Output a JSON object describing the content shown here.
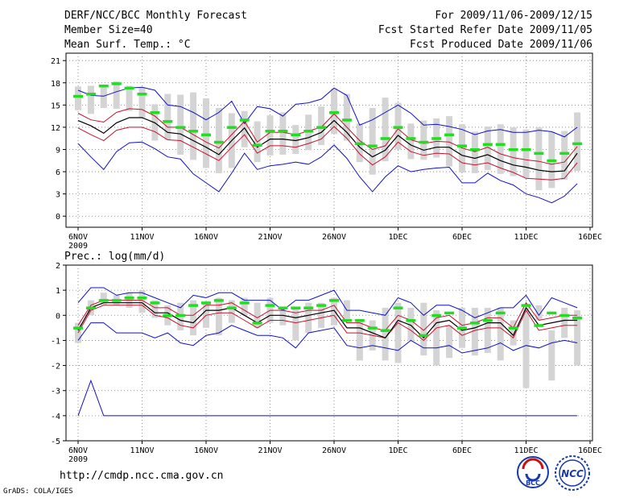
{
  "header": {
    "left_line1": "DERF/NCC/BCC Monthly Forecast",
    "left_line2": "Member Size=40",
    "left_line3": "Mean Surf. Temp.: °C",
    "right_line1": "For 2009/11/06-2009/12/15",
    "right_line2": "Fcst Started Refer Date 2009/11/05",
    "right_line3": "Fcst Produced Date 2009/11/06"
  },
  "footer": {
    "url": "http://cmdp.ncc.cma.gov.cn",
    "credit": "GrADS: COLA/IGES",
    "logo_bcc": "BCC",
    "logo_ncc": "NCC"
  },
  "colors": {
    "box": "#d4d4d4",
    "median": "#22dd22",
    "mean": "#000000",
    "inner": "#c8102e",
    "outer": "#1010cc",
    "grid": "#777777"
  },
  "chart_data": [
    {
      "type": "line",
      "title": "Mean Surf. Temp.: °C",
      "ylim": [
        -1.5,
        22
      ],
      "yticks": [
        0,
        3,
        6,
        9,
        12,
        15,
        18,
        21
      ],
      "xticks": [
        {
          "day": 0,
          "label": "6NOV",
          "sub": "2009"
        },
        {
          "day": 5,
          "label": "11NOV",
          "sub": ""
        },
        {
          "day": 10,
          "label": "16NOV",
          "sub": ""
        },
        {
          "day": 15,
          "label": "21NOV",
          "sub": ""
        },
        {
          "day": 20,
          "label": "26NOV",
          "sub": ""
        },
        {
          "day": 25,
          "label": "1DEC",
          "sub": ""
        },
        {
          "day": 30,
          "label": "6DEC",
          "sub": ""
        },
        {
          "day": 35,
          "label": "11DEC",
          "sub": ""
        },
        {
          "day": 40,
          "label": "16DEC",
          "sub": ""
        }
      ],
      "days": [
        0,
        1,
        2,
        3,
        4,
        5,
        6,
        7,
        8,
        9,
        10,
        11,
        12,
        13,
        14,
        15,
        16,
        17,
        18,
        19,
        20,
        21,
        22,
        23,
        24,
        25,
        26,
        27,
        28,
        29,
        30,
        31,
        32,
        33,
        34,
        35,
        36,
        37,
        38,
        39
      ],
      "box_low": [
        14.3,
        13.8,
        14.6,
        14.5,
        14.2,
        13.3,
        10.2,
        10.3,
        8.3,
        7.6,
        6.5,
        5.8,
        6.5,
        9.3,
        7.3,
        8.2,
        8.3,
        8.4,
        8.9,
        9.6,
        11.1,
        10.2,
        7.3,
        5.6,
        7.4,
        9.0,
        7.7,
        7.6,
        7.9,
        6.7,
        5.9,
        5.8,
        6.2,
        5.7,
        5.4,
        5.2,
        3.5,
        3.8,
        4.9,
        6.1
      ],
      "box_high": [
        17.5,
        17.6,
        17.7,
        18.2,
        17.6,
        17.4,
        15.1,
        16.5,
        16.4,
        16.7,
        15.9,
        14.6,
        13.9,
        14.2,
        12.8,
        13.6,
        14.0,
        12.3,
        13.7,
        14.8,
        17.2,
        16.5,
        12.5,
        14.6,
        16.0,
        15.3,
        12.5,
        12.9,
        13.2,
        13.5,
        12.4,
        11.4,
        12.1,
        12.4,
        12.0,
        11.7,
        12.0,
        11.4,
        11.5,
        14.0
      ],
      "median": [
        16.2,
        16.5,
        17.6,
        17.9,
        17.3,
        16.5,
        14.0,
        12.8,
        12.0,
        11.5,
        11.0,
        10.0,
        12.0,
        13.0,
        9.6,
        11.5,
        11.5,
        11.0,
        11.5,
        12.0,
        14.0,
        13.0,
        9.8,
        9.5,
        10.5,
        12.0,
        10.5,
        10.0,
        10.5,
        11.0,
        9.5,
        9.0,
        9.7,
        9.7,
        9.0,
        9.0,
        8.5,
        7.5,
        8.5,
        9.8
      ],
      "mean": [
        12.9,
        12.2,
        11.2,
        12.6,
        13.3,
        13.3,
        12.6,
        11.3,
        11.1,
        10.2,
        9.3,
        8.3,
        10.2,
        11.9,
        9.3,
        10.4,
        10.4,
        10.2,
        10.6,
        11.3,
        12.9,
        11.3,
        9.3,
        8.0,
        8.9,
        10.9,
        9.6,
        8.9,
        9.3,
        9.3,
        8.2,
        7.8,
        8.3,
        7.5,
        6.9,
        6.6,
        6.2,
        6.0,
        6.1,
        8.5
      ],
      "inner_high": [
        13.9,
        13.0,
        12.7,
        14.0,
        14.5,
        14.4,
        13.5,
        12.0,
        12.0,
        11.0,
        10.0,
        9.2,
        11.0,
        12.8,
        10.0,
        11.3,
        11.3,
        11.0,
        11.5,
        12.0,
        13.8,
        12.0,
        10.2,
        9.0,
        9.5,
        11.8,
        10.3,
        9.8,
        10.1,
        10.0,
        9.2,
        8.7,
        9.3,
        8.4,
        7.9,
        7.6,
        7.4,
        7.0,
        7.3,
        9.4
      ],
      "inner_low": [
        11.9,
        11.0,
        10.2,
        11.6,
        12.0,
        12.0,
        11.4,
        10.3,
        10.2,
        9.3,
        8.4,
        7.5,
        9.3,
        11.0,
        8.5,
        9.5,
        9.5,
        9.3,
        9.8,
        10.4,
        12.1,
        10.5,
        8.4,
        6.9,
        8.0,
        10.0,
        8.7,
        8.2,
        8.5,
        8.4,
        7.2,
        6.9,
        7.2,
        6.5,
        5.9,
        5.1,
        5.0,
        4.9,
        5.1,
        7.2
      ],
      "outer_high": [
        17.0,
        16.3,
        16.2,
        16.8,
        17.3,
        17.4,
        17.0,
        15.0,
        14.8,
        14.0,
        13.0,
        14.0,
        15.5,
        12.5,
        14.8,
        14.5,
        13.5,
        15.1,
        15.3,
        15.8,
        17.3,
        16.3,
        12.3,
        13.0,
        14.0,
        15.0,
        13.9,
        12.3,
        12.4,
        12.1,
        11.7,
        11.0,
        11.5,
        11.7,
        11.3,
        11.3,
        11.6,
        11.4,
        10.7,
        12.0
      ],
      "outer_low": [
        9.8,
        8.0,
        6.3,
        8.7,
        9.9,
        10.0,
        9.1,
        8.0,
        7.7,
        5.7,
        4.5,
        3.3,
        5.8,
        8.5,
        6.3,
        6.8,
        7.0,
        7.3,
        7.0,
        8.0,
        9.6,
        7.8,
        5.3,
        3.3,
        5.3,
        6.8,
        6.0,
        6.3,
        6.5,
        6.6,
        4.5,
        4.5,
        5.8,
        4.8,
        4.2,
        3.0,
        2.5,
        1.8,
        2.7,
        4.4
      ]
    },
    {
      "type": "line",
      "title": "Prec.: log(mm/d)",
      "ylim": [
        -5,
        2
      ],
      "yticks": [
        -5,
        -4,
        -3,
        -2,
        -1,
        0,
        1,
        2
      ],
      "xticks": [
        {
          "day": 0,
          "label": "6NOV",
          "sub": "2009"
        },
        {
          "day": 5,
          "label": "11NOV",
          "sub": ""
        },
        {
          "day": 10,
          "label": "16NOV",
          "sub": ""
        },
        {
          "day": 15,
          "label": "21NOV",
          "sub": ""
        },
        {
          "day": 20,
          "label": "26NOV",
          "sub": ""
        },
        {
          "day": 25,
          "label": "1DEC",
          "sub": ""
        },
        {
          "day": 30,
          "label": "6DEC",
          "sub": ""
        },
        {
          "day": 35,
          "label": "11DEC",
          "sub": ""
        },
        {
          "day": 40,
          "label": "16DEC",
          "sub": ""
        }
      ],
      "days": [
        0,
        1,
        2,
        3,
        4,
        5,
        6,
        7,
        8,
        9,
        10,
        11,
        12,
        13,
        14,
        15,
        16,
        17,
        18,
        19,
        20,
        21,
        22,
        23,
        24,
        25,
        26,
        27,
        28,
        29,
        30,
        31,
        32,
        33,
        34,
        35,
        36,
        37,
        38,
        39
      ],
      "box_low": [
        -1.1,
        0.0,
        0.4,
        0.4,
        0.3,
        0.1,
        -0.1,
        -0.4,
        -0.6,
        -0.8,
        -0.5,
        -0.8,
        -0.3,
        0.0,
        -0.5,
        -0.3,
        -0.4,
        -1.0,
        -0.7,
        -0.5,
        -0.4,
        -0.2,
        -1.8,
        -1.4,
        -1.8,
        -1.9,
        -1.0,
        -1.6,
        -2.0,
        -1.7,
        -1.3,
        -1.6,
        -1.5,
        -1.8,
        -1.2,
        -2.9,
        -0.2,
        -2.6,
        -0.9,
        -2.0
      ],
      "box_high": [
        -0.3,
        0.6,
        0.9,
        0.8,
        0.9,
        1.0,
        0.6,
        0.4,
        0.5,
        0.6,
        0.5,
        0.7,
        0.6,
        0.7,
        0.5,
        0.7,
        0.3,
        0.3,
        0.5,
        0.5,
        0.7,
        0.6,
        -0.2,
        -0.2,
        0.3,
        0.5,
        0.3,
        0.5,
        0.2,
        -0.4,
        0.3,
        0.3,
        0.3,
        0.3,
        -0.2,
        0.3,
        0.4,
        -0.6,
        0.3,
        0.2
      ],
      "median": [
        -0.5,
        0.3,
        0.6,
        0.6,
        0.7,
        0.7,
        0.5,
        0.0,
        0.0,
        0.4,
        0.5,
        0.6,
        0.3,
        0.5,
        -0.3,
        0.4,
        0.3,
        0.3,
        0.3,
        0.4,
        0.6,
        -0.2,
        -0.2,
        -0.5,
        -0.6,
        0.3,
        -0.2,
        -0.8,
        0.0,
        0.1,
        -0.5,
        -0.3,
        -0.2,
        0.1,
        -0.5,
        0.4,
        -0.4,
        0.1,
        0.0,
        -0.1
      ],
      "mean": [
        -0.6,
        0.3,
        0.5,
        0.5,
        0.5,
        0.5,
        0.1,
        0.1,
        -0.2,
        -0.3,
        0.2,
        0.2,
        0.3,
        0.0,
        -0.3,
        0.0,
        0.0,
        -0.1,
        0.0,
        0.1,
        0.2,
        -0.5,
        -0.5,
        -0.7,
        -0.9,
        -0.2,
        -0.4,
        -0.9,
        -0.3,
        -0.2,
        -0.6,
        -0.5,
        -0.3,
        -0.3,
        -0.8,
        0.3,
        -0.4,
        -0.3,
        -0.2,
        -0.2
      ],
      "inner_high": [
        -0.4,
        0.4,
        0.6,
        0.6,
        0.6,
        0.6,
        0.3,
        0.3,
        -0.0,
        0.0,
        0.4,
        0.4,
        0.5,
        0.2,
        -0.1,
        0.2,
        0.2,
        0.1,
        0.2,
        0.2,
        0.4,
        -0.3,
        -0.3,
        -0.5,
        -0.6,
        0.0,
        -0.2,
        -0.6,
        -0.1,
        0.0,
        -0.4,
        -0.3,
        -0.1,
        -0.1,
        -0.5,
        0.5,
        -0.2,
        -0.1,
        0.0,
        0.0
      ],
      "inner_low": [
        -0.7,
        0.2,
        0.4,
        0.4,
        0.4,
        0.4,
        0.0,
        -0.1,
        -0.4,
        -0.5,
        0.0,
        0.1,
        0.1,
        -0.2,
        -0.5,
        -0.2,
        -0.2,
        -0.3,
        -0.2,
        -0.1,
        0.0,
        -0.7,
        -0.7,
        -0.8,
        -0.9,
        -0.3,
        -0.6,
        -1.0,
        -0.5,
        -0.4,
        -0.8,
        -0.6,
        -0.5,
        -0.5,
        -0.9,
        0.2,
        -0.6,
        -0.5,
        -0.4,
        -0.4
      ],
      "outer_high": [
        0.5,
        1.1,
        1.1,
        0.8,
        0.9,
        0.9,
        0.7,
        0.5,
        0.3,
        0.8,
        0.7,
        0.9,
        0.9,
        0.6,
        0.6,
        0.6,
        0.2,
        0.6,
        0.6,
        0.8,
        1.0,
        0.2,
        0.2,
        0.1,
        0.0,
        0.7,
        0.5,
        0.0,
        0.4,
        0.4,
        0.2,
        -0.1,
        0.1,
        0.3,
        0.3,
        0.8,
        0.0,
        0.7,
        0.5,
        0.3
      ],
      "outer_low": [
        -1.0,
        -0.3,
        -0.3,
        -0.7,
        -0.7,
        -0.7,
        -0.9,
        -0.7,
        -1.1,
        -1.2,
        -0.8,
        -0.7,
        -0.4,
        -0.6,
        -0.8,
        -0.8,
        -0.9,
        -1.3,
        -0.7,
        -0.6,
        -0.5,
        -1.2,
        -1.3,
        -1.2,
        -1.3,
        -1.4,
        -1.0,
        -1.3,
        -1.3,
        -1.2,
        -1.5,
        -1.4,
        -1.3,
        -1.1,
        -1.4,
        -1.2,
        -1.3,
        -1.1,
        -1.0,
        -1.1
      ],
      "extra_low": [
        -4.0,
        -2.6,
        -4.0,
        -4.0,
        -4.0,
        -4.0,
        -4.0,
        -4.0,
        -4.0,
        -4.0,
        -4.0,
        -4.0,
        -4.0,
        -4.0,
        -4.0,
        -4.0,
        -4.0,
        -4.0,
        -4.0,
        -4.0,
        -4.0,
        -4.0,
        -4.0,
        -4.0,
        -4.0,
        -4.0,
        -4.0,
        -4.0,
        -4.0,
        -4.0,
        -4.0,
        -4.0,
        -4.0,
        -4.0,
        -4.0,
        -4.0,
        -4.0,
        -4.0,
        -4.0,
        -4.0
      ]
    }
  ]
}
